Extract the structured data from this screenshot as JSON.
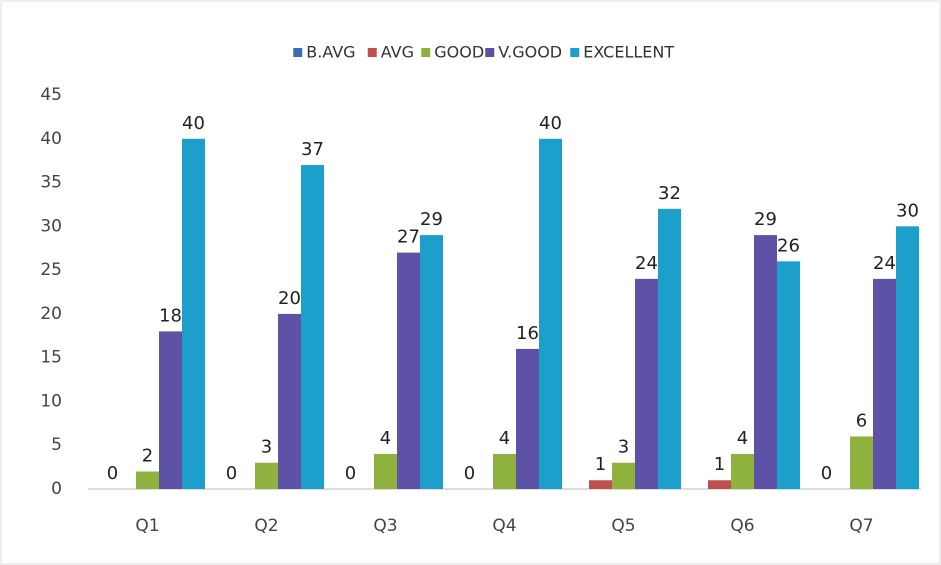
{
  "chart_data": {
    "type": "bar",
    "categories": [
      "Q1",
      "Q2",
      "Q3",
      "Q4",
      "Q5",
      "Q6",
      "Q7"
    ],
    "series": [
      {
        "name": "B.AVG",
        "color": "#3b6fb3",
        "values": [
          0,
          0,
          0,
          0,
          0,
          0,
          0
        ],
        "data_labels": false
      },
      {
        "name": "AVG",
        "color": "#c0504d",
        "values": [
          0,
          0,
          0,
          0,
          1,
          1,
          0
        ],
        "data_labels": true
      },
      {
        "name": "GOOD",
        "color": "#8fb23e",
        "values": [
          2,
          3,
          4,
          4,
          3,
          4,
          6
        ],
        "data_labels": true
      },
      {
        "name": "V.GOOD",
        "color": "#5e52a6",
        "values": [
          18,
          20,
          27,
          16,
          24,
          29,
          24
        ],
        "data_labels": true
      },
      {
        "name": "EXCELLENT",
        "color": "#1d9fcb",
        "values": [
          40,
          37,
          29,
          40,
          32,
          26,
          30
        ],
        "data_labels": true
      }
    ],
    "ylim": [
      0,
      45
    ],
    "yticks": [
      0,
      5,
      10,
      15,
      20,
      25,
      30,
      35,
      40,
      45
    ],
    "grid": false,
    "legend": "top"
  }
}
